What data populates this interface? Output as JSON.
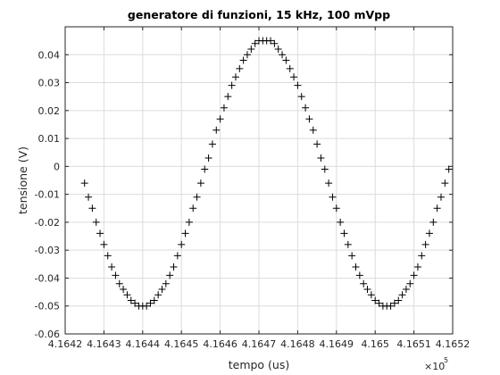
{
  "chart_data": {
    "type": "scatter",
    "title": "generatore di funzioni, 15 kHz, 100 mVpp",
    "xlabel": "tempo (us)",
    "ylabel": "tensione (V)",
    "x_multiplier": "×10",
    "x_multiplier_exp": "5",
    "marker": "+",
    "color": "#000000",
    "grid": true,
    "xlim": [
      416420,
      416520
    ],
    "ylim": [
      -0.06,
      0.05
    ],
    "xticks": [
      {
        "value": 416420,
        "label": "4.1642"
      },
      {
        "value": 416430,
        "label": "4.1643"
      },
      {
        "value": 416440,
        "label": "4.1644"
      },
      {
        "value": 416450,
        "label": "4.1645"
      },
      {
        "value": 416460,
        "label": "4.1646"
      },
      {
        "value": 416470,
        "label": "4.1647"
      },
      {
        "value": 416480,
        "label": "4.1648"
      },
      {
        "value": 416490,
        "label": "4.1649"
      },
      {
        "value": 416500,
        "label": "4.165"
      },
      {
        "value": 416510,
        "label": "4.1651"
      },
      {
        "value": 416520,
        "label": "4.1652"
      }
    ],
    "yticks": [
      -0.06,
      -0.05,
      -0.04,
      -0.03,
      -0.02,
      -0.01,
      0,
      0.01,
      0.02,
      0.03,
      0.04
    ],
    "x": [
      416425,
      416426,
      416427,
      416428,
      416429,
      416430,
      416431,
      416432,
      416433,
      416434,
      416435,
      416436,
      416437,
      416438,
      416439,
      416440,
      416441,
      416442,
      416443,
      416444,
      416445,
      416446,
      416447,
      416448,
      416449,
      416450,
      416451,
      416452,
      416453,
      416454,
      416455,
      416456,
      416457,
      416458,
      416459,
      416460,
      416461,
      416462,
      416463,
      416464,
      416465,
      416466,
      416467,
      416468,
      416469,
      416470,
      416471,
      416472,
      416473,
      416474,
      416475,
      416476,
      416477,
      416478,
      416479,
      416480,
      416481,
      416482,
      416483,
      416484,
      416485,
      416486,
      416487,
      416488,
      416489,
      416490,
      416491,
      416492,
      416493,
      416494,
      416495,
      416496,
      416497,
      416498,
      416499,
      416500,
      416501,
      416502,
      416503,
      416504,
      416505,
      416506,
      416507,
      416508,
      416509,
      416510,
      416511,
      416512,
      416513,
      416514,
      416515,
      416516,
      416517,
      416518,
      416519
    ],
    "values": [
      -0.006,
      -0.011,
      -0.015,
      -0.02,
      -0.024,
      -0.028,
      -0.032,
      -0.036,
      -0.039,
      -0.042,
      -0.044,
      -0.046,
      -0.048,
      -0.049,
      -0.05,
      -0.05,
      -0.05,
      -0.049,
      -0.048,
      -0.046,
      -0.044,
      -0.042,
      -0.039,
      -0.036,
      -0.032,
      -0.028,
      -0.024,
      -0.02,
      -0.015,
      -0.011,
      -0.006,
      -0.001,
      0.003,
      0.008,
      0.013,
      0.017,
      0.021,
      0.025,
      0.029,
      0.032,
      0.035,
      0.038,
      0.04,
      0.042,
      0.044,
      0.045,
      0.045,
      0.045,
      0.045,
      0.044,
      0.042,
      0.04,
      0.038,
      0.035,
      0.032,
      0.029,
      0.025,
      0.021,
      0.017,
      0.013,
      0.008,
      0.003,
      -0.001,
      -0.006,
      -0.011,
      -0.015,
      -0.02,
      -0.024,
      -0.028,
      -0.032,
      -0.036,
      -0.039,
      -0.042,
      -0.044,
      -0.046,
      -0.048,
      -0.049,
      -0.05,
      -0.05,
      -0.05,
      -0.049,
      -0.048,
      -0.046,
      -0.044,
      -0.042,
      -0.039,
      -0.036,
      -0.032,
      -0.028,
      -0.024,
      -0.02,
      -0.015,
      -0.011,
      -0.006,
      -0.001
    ]
  }
}
